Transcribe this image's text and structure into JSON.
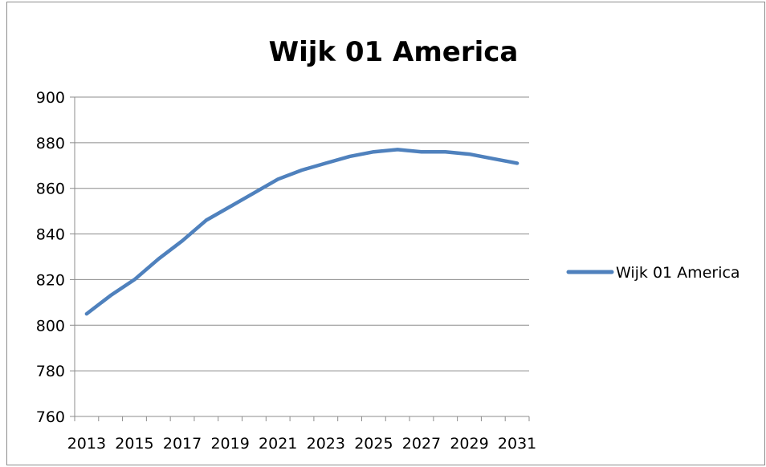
{
  "chart_data": {
    "type": "line",
    "title": "Wijk 01 America",
    "xlabel": "",
    "ylabel": "",
    "x": [
      2013,
      2014,
      2015,
      2016,
      2017,
      2018,
      2019,
      2020,
      2021,
      2022,
      2023,
      2024,
      2025,
      2026,
      2027,
      2028,
      2029,
      2030,
      2031
    ],
    "x_tick_labels": [
      "2013",
      "2015",
      "2017",
      "2019",
      "2021",
      "2023",
      "2025",
      "2027",
      "2029",
      "2031"
    ],
    "y_tick_labels": [
      "760",
      "780",
      "800",
      "820",
      "840",
      "860",
      "880",
      "900"
    ],
    "ylim": [
      760,
      900
    ],
    "grid": "horizontal",
    "legend_position": "right",
    "series": [
      {
        "name": "Wijk 01 America",
        "color": "#4f81bd",
        "values": [
          805,
          813,
          820,
          829,
          837,
          846,
          852,
          858,
          864,
          868,
          871,
          874,
          876,
          877,
          876,
          876,
          875,
          873,
          871
        ]
      }
    ]
  }
}
